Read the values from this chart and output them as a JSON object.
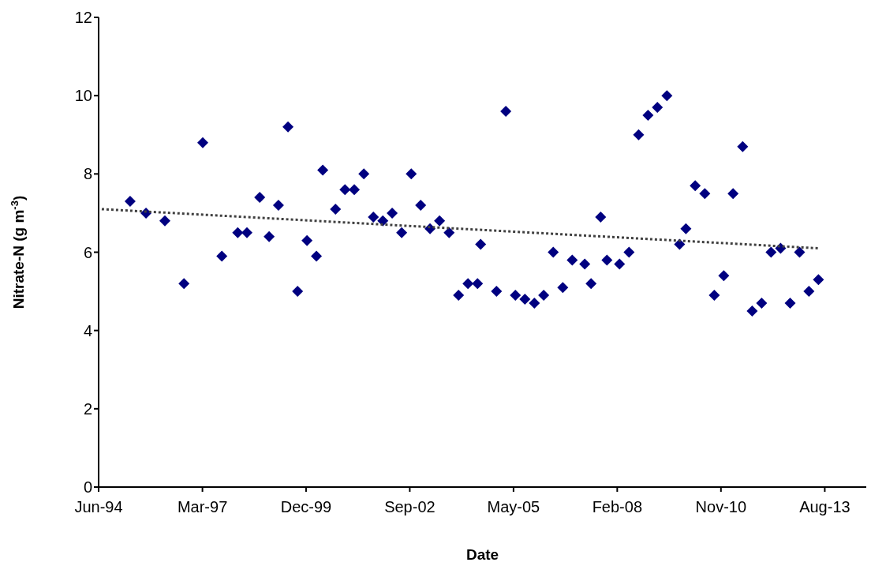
{
  "chart_data": {
    "type": "scatter",
    "xlabel": "Date",
    "ylabel": "Nitrate-N (g m$^{-3}$)",
    "xlim": [
      "1994-06-15",
      "2014-09-19"
    ],
    "xticks": [
      {
        "value": "1994-06-15",
        "label": "Jun-94"
      },
      {
        "value": "1997-03-12",
        "label": "Mar-97"
      },
      {
        "value": "1999-12-06",
        "label": "Dec-99"
      },
      {
        "value": "2002-09-01",
        "label": "Sep-02"
      },
      {
        "value": "2005-05-28",
        "label": "May-05"
      },
      {
        "value": "2008-02-22",
        "label": "Feb-08"
      },
      {
        "value": "2010-11-18",
        "label": "Nov-10"
      },
      {
        "value": "2013-08-15",
        "label": "Aug-13"
      }
    ],
    "ylim": [
      0,
      12
    ],
    "yticks": [
      0,
      2,
      4,
      6,
      8,
      10,
      12
    ],
    "series": [
      {
        "color": "#000080",
        "marker": "diamond",
        "x": [
          "1995-04",
          "1995-09",
          "1996-03",
          "1996-09",
          "1997-03",
          "1997-09",
          "1998-02",
          "1998-05",
          "1998-09",
          "1998-12",
          "1999-03",
          "1999-06",
          "1999-09",
          "1999-12",
          "2000-03",
          "2000-05",
          "2000-09",
          "2000-12",
          "2001-03",
          "2001-06",
          "2001-09",
          "2001-12",
          "2002-03",
          "2002-06",
          "2002-09",
          "2002-12",
          "2003-03",
          "2003-06",
          "2003-09",
          "2003-12",
          "2004-03",
          "2004-06",
          "2004-07",
          "2004-12",
          "2005-03",
          "2005-06",
          "2005-09",
          "2005-12",
          "2006-03",
          "2006-06",
          "2006-09",
          "2006-12",
          "2007-04",
          "2007-06",
          "2007-09",
          "2007-11",
          "2008-03",
          "2008-06",
          "2008-09",
          "2008-12",
          "2009-03",
          "2009-06",
          "2009-10",
          "2009-12",
          "2010-03",
          "2010-06",
          "2010-09",
          "2010-12",
          "2011-03",
          "2011-06",
          "2011-09",
          "2011-12",
          "2012-03",
          "2012-06",
          "2012-09",
          "2012-12",
          "2013-03",
          "2013-06"
        ],
        "values": [
          7.3,
          7.0,
          6.8,
          5.2,
          8.8,
          5.9,
          6.5,
          6.5,
          7.4,
          6.4,
          7.2,
          9.2,
          5.0,
          6.3,
          5.9,
          8.1,
          7.1,
          7.6,
          7.6,
          8.0,
          6.9,
          6.8,
          7.0,
          6.5,
          8.0,
          7.2,
          6.6,
          6.8,
          6.5,
          4.9,
          5.2,
          5.2,
          6.2,
          5.0,
          9.6,
          4.9,
          4.8,
          4.7,
          4.9,
          6.0,
          5.1,
          5.8,
          5.7,
          5.2,
          6.9,
          5.8,
          5.7,
          6.0,
          9.0,
          9.5,
          9.7,
          10.0,
          6.2,
          6.6,
          7.7,
          7.5,
          4.9,
          5.4,
          7.5,
          8.7,
          4.5,
          4.7,
          6.0,
          6.1,
          4.7,
          6.0,
          5.0,
          5.3
        ]
      },
      {
        "type": "line",
        "color": "#404040",
        "marker": "none",
        "line_style": "dotted",
        "x": [
          "1994-07",
          "2013-06"
        ],
        "values": [
          7.1,
          6.1
        ]
      }
    ]
  }
}
